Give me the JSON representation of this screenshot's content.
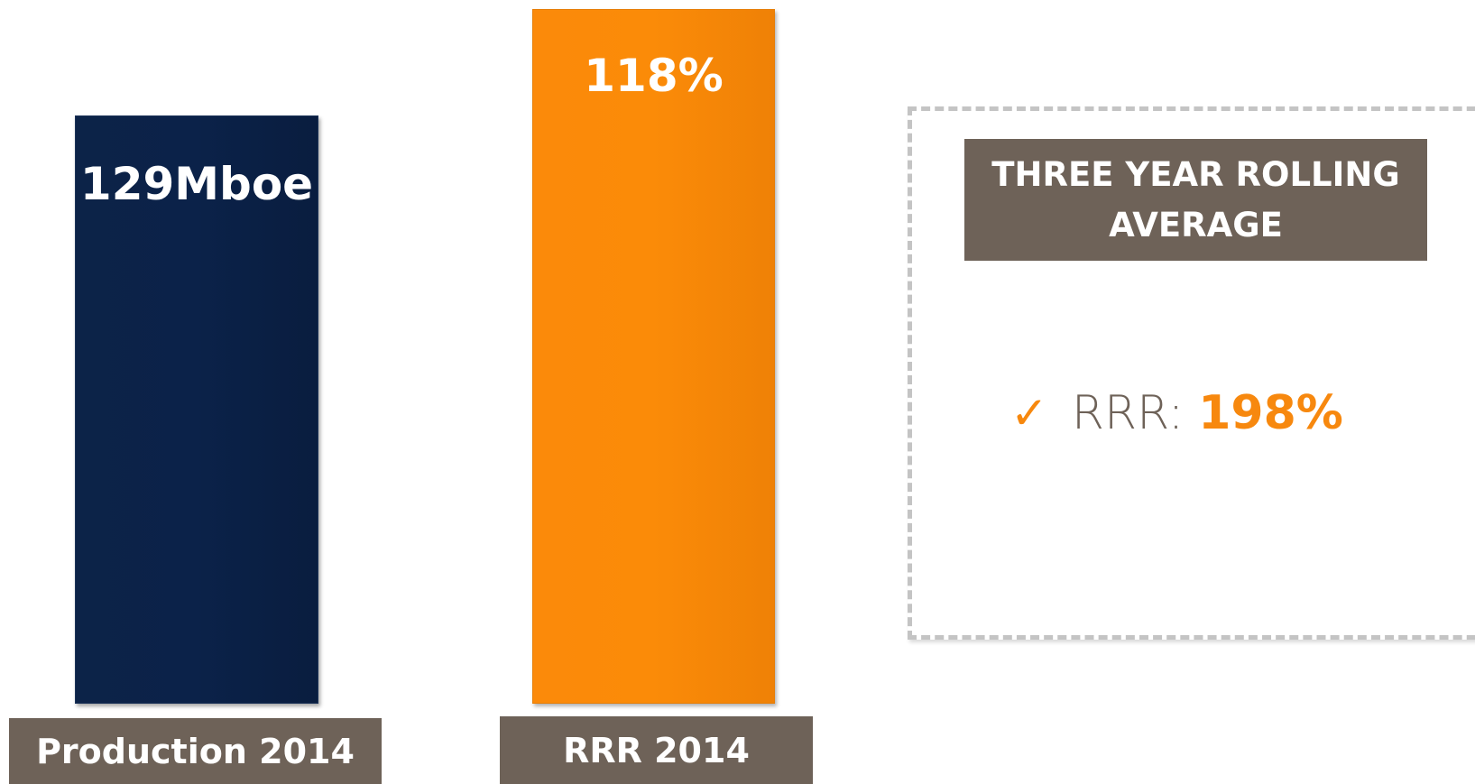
{
  "bars": [
    {
      "value_label": "129Mboe",
      "label": "Production 2014"
    },
    {
      "value_label": "118%",
      "label": "RRR 2014"
    }
  ],
  "panel": {
    "title": "THREE YEAR ROLLING AVERAGE",
    "item": {
      "label": "RRR:",
      "value": "198%"
    }
  }
}
